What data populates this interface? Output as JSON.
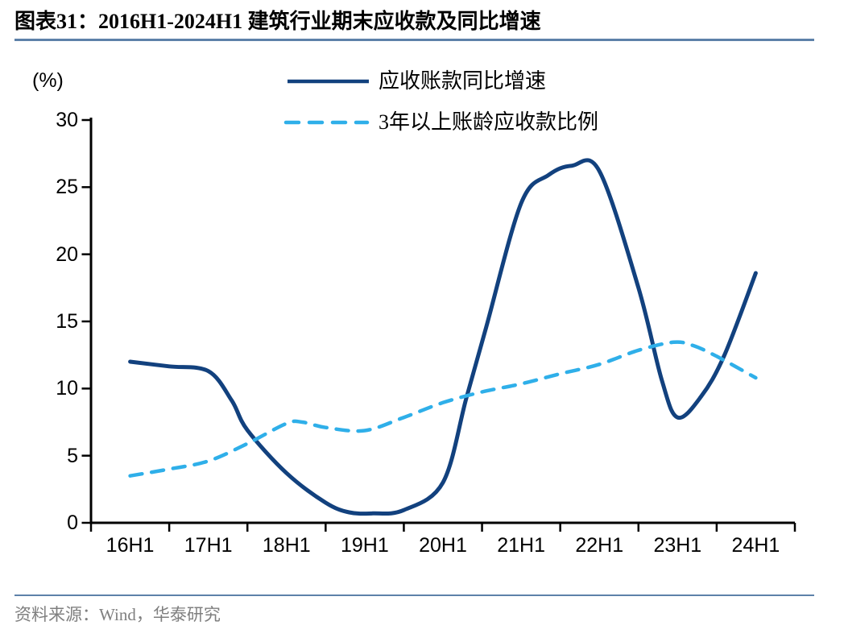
{
  "header": {
    "index_label": "图表31：",
    "title": "2016H1-2024H1 建筑行业期末应收款及同比增速"
  },
  "colors": {
    "rule_blue": "#5D81A9",
    "axis_black": "#000000",
    "source_gray": "#7F7F7F",
    "series_solid": "#12417E",
    "series_dashed": "#2FAFE9"
  },
  "source": {
    "text": "资料来源：Wind，华泰研究"
  },
  "chart_data": {
    "type": "line",
    "unit_label": "(%)",
    "grid": false,
    "legend_position": "top-center",
    "categories": [
      "16H1",
      "17H1",
      "18H1",
      "19H1",
      "20H1",
      "21H1",
      "22H1",
      "23H1",
      "24H1"
    ],
    "y_ticks": [
      30,
      25,
      20,
      15,
      10,
      5,
      0
    ],
    "ylim": [
      0,
      30
    ],
    "series": [
      {
        "name": "应收账款同比增速",
        "color": "#12417E",
        "style": "solid",
        "values": [
          12.0,
          11.3,
          3.7,
          0.7,
          3.0,
          23.8,
          26.3,
          7.8,
          18.6
        ],
        "render_points": [
          [
            0,
            12.0
          ],
          [
            0.5,
            11.65
          ],
          [
            1,
            11.3
          ],
          [
            1.3,
            9.1
          ],
          [
            1.5,
            6.9
          ],
          [
            2,
            3.7
          ],
          [
            2.5,
            1.5
          ],
          [
            2.8,
            0.78
          ],
          [
            3.1,
            0.7
          ],
          [
            3.5,
            0.95
          ],
          [
            4,
            3.0
          ],
          [
            4.3,
            9.3
          ],
          [
            4.55,
            14.5
          ],
          [
            5,
            23.8
          ],
          [
            5.35,
            25.9
          ],
          [
            5.65,
            26.6
          ],
          [
            6,
            26.2
          ],
          [
            6.5,
            17.5
          ],
          [
            6.8,
            10.6
          ],
          [
            7,
            7.85
          ],
          [
            7.3,
            9.4
          ],
          [
            7.6,
            12.5
          ],
          [
            8,
            18.6
          ]
        ]
      },
      {
        "name": "3年以上账龄应收款比例",
        "color": "#2FAFE9",
        "style": "dashed",
        "values": [
          3.5,
          4.6,
          7.4,
          6.9,
          8.9,
          10.3,
          11.8,
          13.4,
          10.8
        ],
        "render_points": [
          [
            0,
            3.5
          ],
          [
            0.5,
            4.0
          ],
          [
            1,
            4.6
          ],
          [
            1.5,
            5.9
          ],
          [
            2,
            7.4
          ],
          [
            2.2,
            7.5
          ],
          [
            2.5,
            7.1
          ],
          [
            3,
            6.87
          ],
          [
            3.5,
            7.85
          ],
          [
            4,
            8.95
          ],
          [
            4.5,
            9.75
          ],
          [
            5,
            10.35
          ],
          [
            5.5,
            11.1
          ],
          [
            6,
            11.8
          ],
          [
            6.5,
            12.85
          ],
          [
            6.95,
            13.45
          ],
          [
            7.2,
            13.2
          ],
          [
            7.5,
            12.4
          ],
          [
            8,
            10.8
          ]
        ]
      }
    ]
  }
}
